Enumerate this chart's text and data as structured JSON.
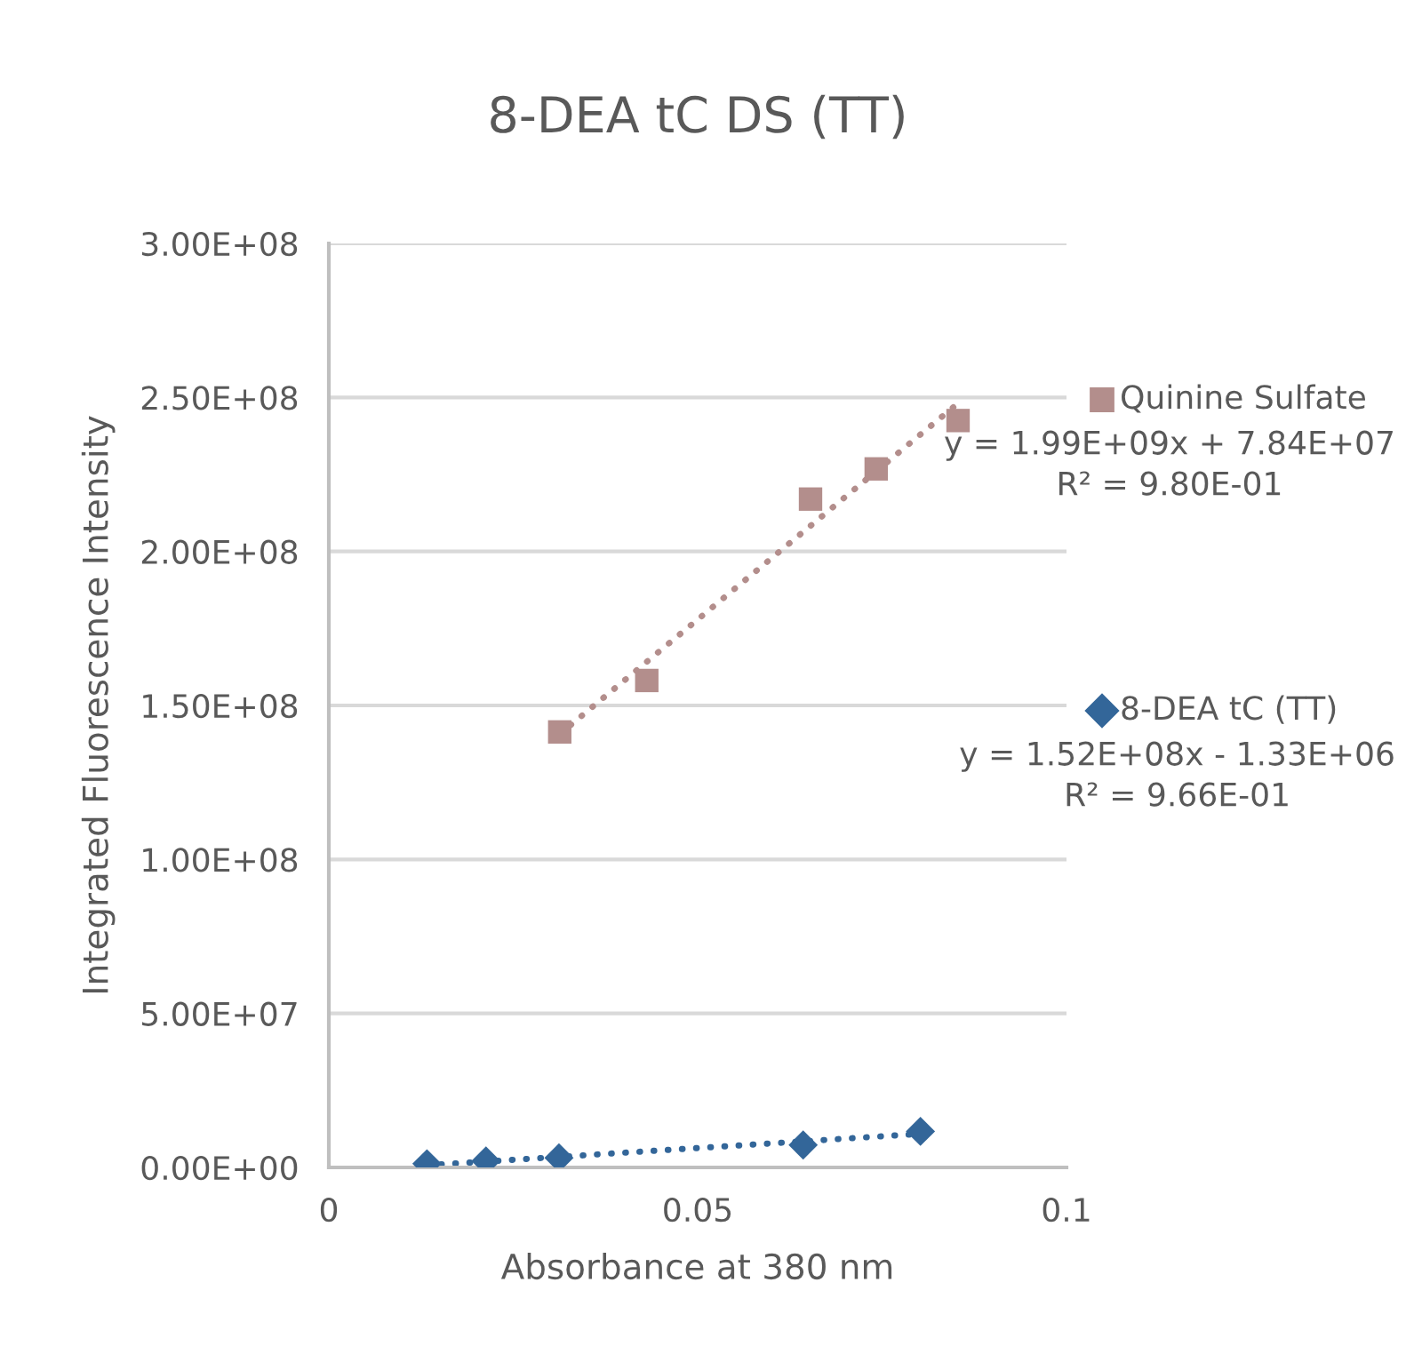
{
  "chart_data": {
    "type": "scatter",
    "title": "8-DEA tC DS (TT)",
    "xlabel": "Absorbance at 380 nm",
    "ylabel": "Integrated Fluorescence Intensity",
    "series": [
      {
        "name": "Quinine Sulfate",
        "color": "#b38e8c",
        "marker": "square",
        "x": [
          0.0313,
          0.0431,
          0.0653,
          0.0742,
          0.0853
        ],
        "values": [
          141400000,
          158100000,
          217000000,
          226800000,
          242500000
        ]
      },
      {
        "type": "line",
        "color": "#b38e8c",
        "line_style": "dotted",
        "marker": "none",
        "x": [
          0.0313,
          0.0853
        ],
        "values": [
          140700000,
          248100000
        ]
      },
      {
        "name": "8-DEA tC (TT)",
        "color": "#336699",
        "marker": "diamond",
        "x": [
          0.0133,
          0.0213,
          0.0312,
          0.0643,
          0.0802
        ],
        "values": [
          1200000,
          2100000,
          3100000,
          7300000,
          11700000
        ]
      },
      {
        "type": "line",
        "color": "#336699",
        "line_style": "dotted",
        "marker": "none",
        "x": [
          0.0133,
          0.0802
        ],
        "values": [
          700000,
          10900000
        ]
      }
    ],
    "annotations": [
      "y = 1.99E+09x + 7.84E+07\nR² = 9.80E-01",
      "y = 1.52E+08x - 1.33E+06\nR² = 9.66E-01"
    ],
    "xlim": [
      0,
      0.1
    ],
    "xticks": [
      0,
      0.05,
      0.1
    ],
    "ylim": [
      0,
      300000000
    ],
    "yticks": [
      {
        "value": 0,
        "label": "0.00E+00"
      },
      {
        "value": 50000000,
        "label": "5.00E+07"
      },
      {
        "value": 100000000,
        "label": "1.00E+08"
      },
      {
        "value": 150000000,
        "label": "1.50E+08"
      },
      {
        "value": 200000000,
        "label": "2.00E+08"
      },
      {
        "value": 250000000,
        "label": "2.50E+08"
      },
      {
        "value": 300000000,
        "label": "3.00E+08"
      }
    ],
    "grid": "y",
    "legend": "right"
  }
}
